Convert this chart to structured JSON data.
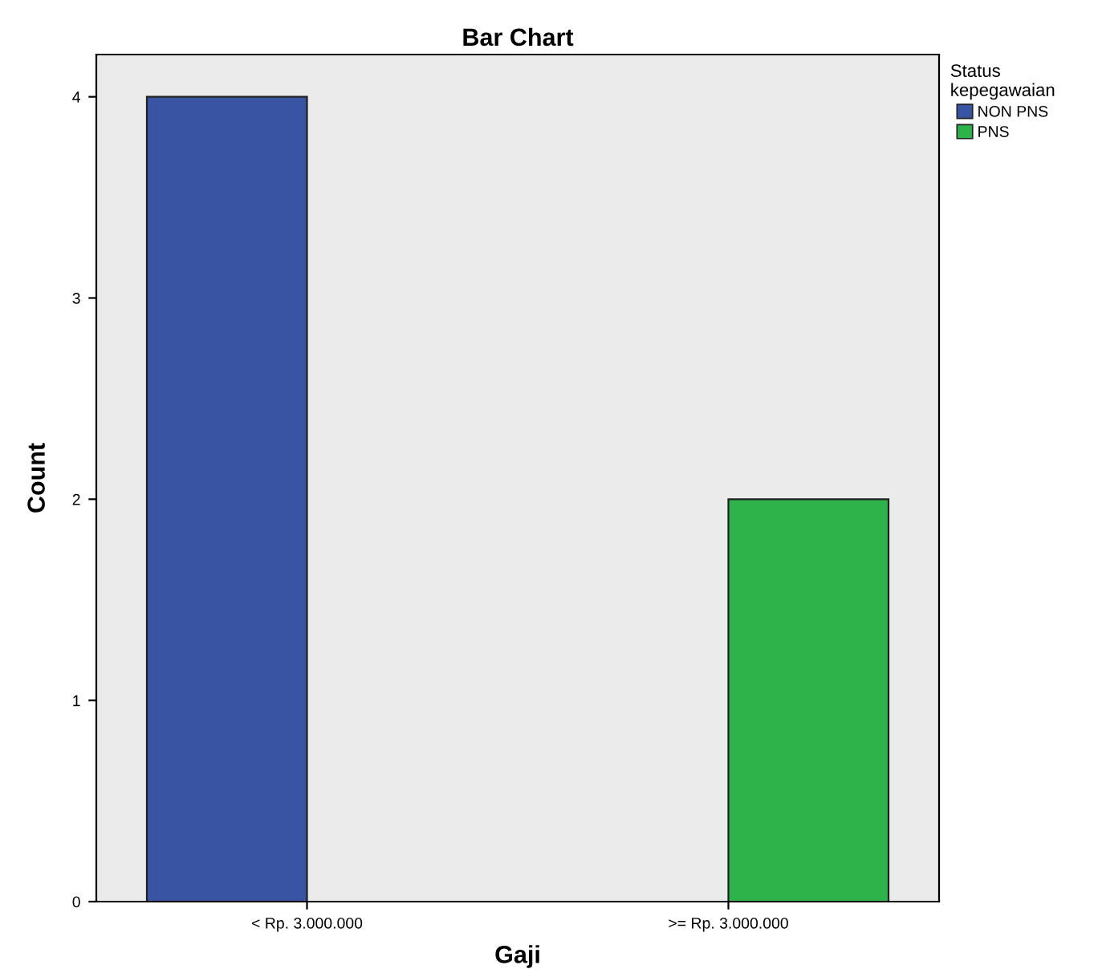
{
  "chart_data": {
    "type": "bar",
    "title": "Bar Chart",
    "xlabel": "Gaji",
    "ylabel": "Count",
    "legend_title": "Status kepegawaian",
    "categories": [
      "< Rp. 3.000.000",
      ">= Rp. 3.000.000"
    ],
    "series": [
      {
        "name": "NON PNS",
        "color": "#3a54a4",
        "values": [
          4,
          null
        ]
      },
      {
        "name": "PNS",
        "color": "#2db34a",
        "values": [
          null,
          2
        ]
      }
    ],
    "ylim": [
      0,
      4.21
    ],
    "yticks": [
      0,
      1,
      2,
      3,
      4
    ],
    "grid": false,
    "legend": "top right"
  }
}
